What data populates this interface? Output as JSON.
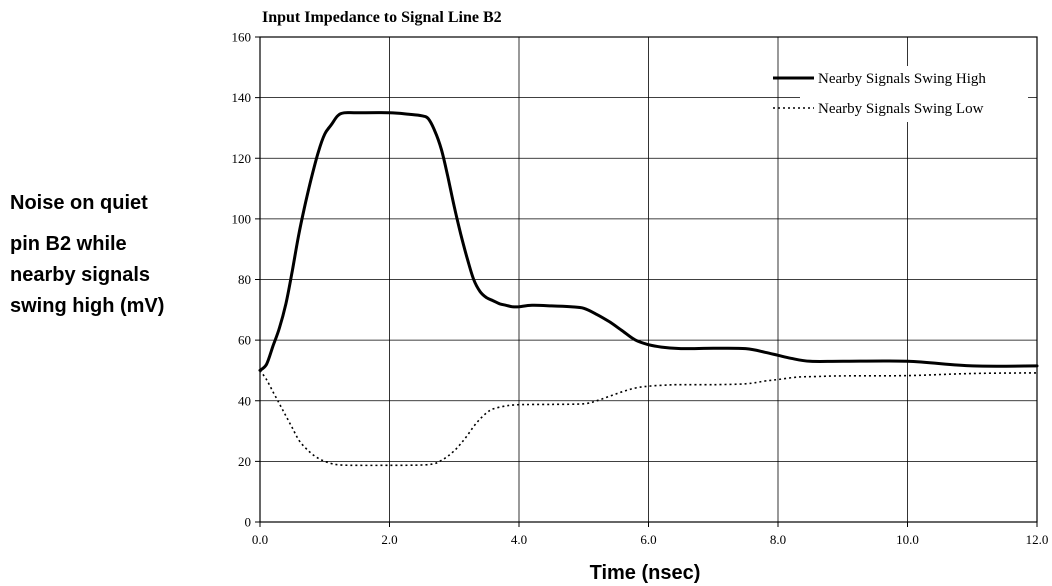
{
  "chart_data": {
    "type": "line",
    "title": "Input Impedance to Signal Line B2",
    "xlabel": "Time (nsec)",
    "ylabel_lines": [
      "Noise on quiet",
      "pin B2 while",
      "nearby signals",
      "swing high (mV)"
    ],
    "xlim": [
      0,
      12
    ],
    "ylim": [
      0,
      160
    ],
    "xticks": [
      0,
      2,
      4,
      6,
      8,
      10,
      12
    ],
    "xtick_labels": [
      "0.0",
      "2.0",
      "4.0",
      "6.0",
      "8.0",
      "10.0",
      "12.0"
    ],
    "yticks": [
      0,
      20,
      40,
      60,
      80,
      100,
      120,
      140,
      160
    ],
    "ytick_labels": [
      "0",
      "20",
      "40",
      "60",
      "80",
      "100",
      "120",
      "140",
      "160"
    ],
    "grid": true,
    "legend_position": "top-right",
    "series": [
      {
        "name": "Nearby Signals Swing High",
        "style": "solid",
        "color": "#000000",
        "x": [
          0,
          0.1,
          0.2,
          0.3,
          0.4,
          0.5,
          0.6,
          0.7,
          0.8,
          0.9,
          1.0,
          1.1,
          1.2,
          1.3,
          1.5,
          2.0,
          2.3,
          2.5,
          2.6,
          2.7,
          2.8,
          2.9,
          3.0,
          3.1,
          3.2,
          3.3,
          3.4,
          3.5,
          3.6,
          3.7,
          3.8,
          3.9,
          4.0,
          4.2,
          4.5,
          4.8,
          5.0,
          5.2,
          5.4,
          5.6,
          5.8,
          6.0,
          6.2,
          6.5,
          7.0,
          7.5,
          7.8,
          8.0,
          8.2,
          8.5,
          9.0,
          10.0,
          11.0,
          12.0
        ],
        "y": [
          50,
          52,
          58,
          64,
          72,
          83,
          95,
          105,
          114,
          122,
          128,
          131,
          134,
          135,
          135,
          135,
          134.5,
          134,
          133,
          129,
          123,
          114,
          104,
          95,
          87,
          80,
          76,
          74,
          73,
          72,
          71.5,
          71,
          71,
          71.5,
          71.3,
          71,
          70.5,
          68.5,
          66,
          63,
          60,
          58.5,
          57.7,
          57.2,
          57.3,
          57.2,
          56,
          55,
          54,
          53,
          53,
          53,
          51.5,
          51.5
        ]
      },
      {
        "name": "Nearby Signals Swing Low",
        "style": "dotted",
        "color": "#000000",
        "x": [
          0,
          0.1,
          0.2,
          0.3,
          0.4,
          0.5,
          0.6,
          0.7,
          0.8,
          0.9,
          1.0,
          1.1,
          1.2,
          1.4,
          2.0,
          2.5,
          2.7,
          2.8,
          2.9,
          3.0,
          3.1,
          3.2,
          3.3,
          3.4,
          3.5,
          3.6,
          3.8,
          4.0,
          4.5,
          5.0,
          5.2,
          5.4,
          5.6,
          5.8,
          6.0,
          6.3,
          6.5,
          7.0,
          7.5,
          7.8,
          8.0,
          8.3,
          8.6,
          9.0,
          10.0,
          11.0,
          12.0
        ],
        "y": [
          50,
          47,
          43,
          39,
          35,
          31,
          27,
          24.5,
          22.5,
          21,
          20,
          19.3,
          18.9,
          18.7,
          18.7,
          18.8,
          19.3,
          20.3,
          21.7,
          23.5,
          25.8,
          28.5,
          31.5,
          34,
          36,
          37.3,
          38.3,
          38.7,
          38.8,
          39,
          40,
          41.5,
          43,
          44.2,
          44.8,
          45.2,
          45.3,
          45.3,
          45.6,
          46.5,
          47,
          47.8,
          48,
          48.2,
          48.3,
          49,
          49.2
        ]
      }
    ]
  }
}
